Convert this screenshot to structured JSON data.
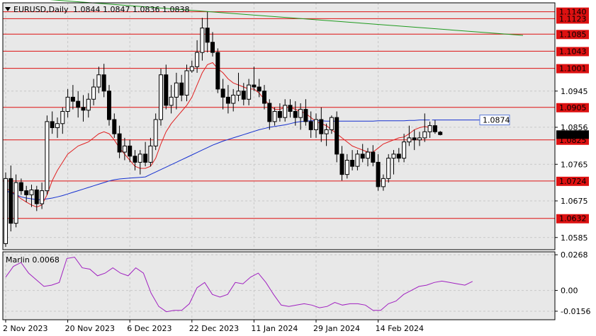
{
  "header": {
    "symbol_label": "EURUSD,Daily",
    "ohlc_label": "1.0844 1.0847 1.0836 1.0838"
  },
  "chart_data": [
    {
      "type": "candlestick",
      "symbol": "EURUSD",
      "timeframe": "Daily",
      "ylim": [
        1.0555,
        1.1162
      ],
      "y_tick_labels": [
        "1.0585",
        "1.0675",
        "1.0765",
        "1.0856",
        "1.0945"
      ],
      "x_tick_labels": [
        "2 Nov 2023",
        "20 Nov 2023",
        "6 Dec 2023",
        "22 Dec 2023",
        "11 Jan 2024",
        "29 Jan 2024",
        "14 Feb 2024"
      ],
      "x_tick_index": [
        0,
        12,
        24,
        36,
        48,
        60,
        72
      ],
      "level_lines": [
        {
          "value": 1.114,
          "label": "1.1140"
        },
        {
          "value": 1.1123,
          "label": "1.1123"
        },
        {
          "value": 1.1085,
          "label": "1.1085"
        },
        {
          "value": 1.1043,
          "label": "1.1043"
        },
        {
          "value": 1.1001,
          "label": "1.1001"
        },
        {
          "value": 1.0905,
          "label": "1.0905"
        },
        {
          "value": 1.0825,
          "label": "1.0825"
        },
        {
          "value": 1.0724,
          "label": "1.0724"
        },
        {
          "value": 1.0632,
          "label": "1.0632"
        }
      ],
      "level_color": "#dd1111",
      "blue_ma_label": "1.0874",
      "current_price_label": "1.0838",
      "trendline": {
        "from": [
          0,
          1.1178
        ],
        "to": [
          100,
          1.1082
        ],
        "color": "#1e9a1e"
      },
      "ohlc": [
        [
          1.057,
          1.0745,
          1.0562,
          1.073
        ],
        [
          1.073,
          1.0762,
          1.06,
          1.062
        ],
        [
          1.062,
          1.074,
          1.061,
          1.072
        ],
        [
          1.072,
          1.073,
          1.069,
          1.07
        ],
        [
          1.07,
          1.0712,
          1.0672,
          1.069
        ],
        [
          1.069,
          1.0715,
          1.066,
          1.0702
        ],
        [
          1.0702,
          1.0712,
          1.065,
          1.0668
        ],
        [
          1.0668,
          1.072,
          1.0655,
          1.07
        ],
        [
          1.07,
          1.0885,
          1.069,
          1.087
        ],
        [
          1.087,
          1.0895,
          1.084,
          1.0855
        ],
        [
          1.0855,
          1.088,
          1.083,
          1.0865
        ],
        [
          1.0865,
          1.0905,
          1.084,
          1.0895
        ],
        [
          1.0895,
          1.095,
          1.088,
          1.093
        ],
        [
          1.093,
          1.096,
          1.09,
          1.092
        ],
        [
          1.092,
          1.0945,
          1.088,
          1.0905
        ],
        [
          1.0905,
          1.0935,
          1.087,
          1.0898
        ],
        [
          1.0898,
          1.094,
          1.088,
          1.0925
        ],
        [
          1.0925,
          1.0975,
          1.091,
          1.0955
        ],
        [
          1.0955,
          1.1005,
          1.094,
          1.0985
        ],
        [
          1.0985,
          1.1012,
          1.093,
          1.0945
        ],
        [
          1.0945,
          1.096,
          1.086,
          1.0875
        ],
        [
          1.0875,
          1.089,
          1.083,
          1.084
        ],
        [
          1.084,
          1.086,
          1.078,
          1.0795
        ],
        [
          1.0795,
          1.083,
          1.0775,
          1.081
        ],
        [
          1.081,
          1.0825,
          1.077,
          1.0785
        ],
        [
          1.0785,
          1.08,
          1.075,
          1.077
        ],
        [
          1.077,
          1.08,
          1.074,
          1.079
        ],
        [
          1.079,
          1.082,
          1.076,
          1.077
        ],
        [
          1.077,
          1.083,
          1.076,
          1.081
        ],
        [
          1.081,
          1.089,
          1.08,
          1.0875
        ],
        [
          1.0875,
          1.1,
          1.086,
          1.0985
        ],
        [
          1.0985,
          1.101,
          1.09,
          1.091
        ],
        [
          1.091,
          1.096,
          1.089,
          1.093
        ],
        [
          1.093,
          1.099,
          1.09,
          1.0965
        ],
        [
          1.0965,
          1.0985,
          1.092,
          1.0935
        ],
        [
          1.0935,
          1.101,
          1.092,
          1.0995
        ],
        [
          1.0995,
          1.102,
          1.099,
          1.1005
        ],
        [
          1.1005,
          1.107,
          1.099,
          1.104
        ],
        [
          1.104,
          1.1125,
          1.102,
          1.11
        ],
        [
          1.11,
          1.114,
          1.104,
          1.1065
        ],
        [
          1.1065,
          1.109,
          1.103,
          1.104
        ],
        [
          1.104,
          1.105,
          1.094,
          1.095
        ],
        [
          1.095,
          1.0975,
          1.09,
          1.093
        ],
        [
          1.093,
          1.096,
          1.089,
          1.0915
        ],
        [
          1.0915,
          1.095,
          1.0895,
          1.0935
        ],
        [
          1.0935,
          1.099,
          1.092,
          1.0945
        ],
        [
          1.0945,
          1.0965,
          1.091,
          1.0925
        ],
        [
          1.0925,
          1.0975,
          1.091,
          1.096
        ],
        [
          1.096,
          1.1005,
          1.0945,
          1.0955
        ],
        [
          1.0955,
          1.0975,
          1.093,
          1.0945
        ],
        [
          1.0945,
          1.096,
          1.09,
          1.0915
        ],
        [
          1.0915,
          1.0925,
          1.085,
          1.087
        ],
        [
          1.087,
          1.0905,
          1.086,
          1.0895
        ],
        [
          1.0895,
          1.0915,
          1.087,
          1.088
        ],
        [
          1.088,
          1.0925,
          1.087,
          1.091
        ],
        [
          1.091,
          1.0925,
          1.088,
          1.0895
        ],
        [
          1.0895,
          1.092,
          1.086,
          1.088
        ],
        [
          1.088,
          1.0915,
          1.085,
          1.09
        ],
        [
          1.09,
          1.0925,
          1.086,
          1.087
        ],
        [
          1.087,
          1.0895,
          1.083,
          1.085
        ],
        [
          1.085,
          1.089,
          1.083,
          1.0875
        ],
        [
          1.0875,
          1.0905,
          1.082,
          1.084
        ],
        [
          1.084,
          1.0865,
          1.081,
          1.085
        ],
        [
          1.085,
          1.0885,
          1.084,
          1.088
        ],
        [
          1.088,
          1.0895,
          1.077,
          1.079
        ],
        [
          1.079,
          1.081,
          1.0725,
          1.074
        ],
        [
          1.074,
          1.079,
          1.073,
          1.0775
        ],
        [
          1.0775,
          1.08,
          1.075,
          1.076
        ],
        [
          1.076,
          1.08,
          1.075,
          1.079
        ],
        [
          1.079,
          1.0815,
          1.077,
          1.078
        ],
        [
          1.078,
          1.0805,
          1.076,
          1.0795
        ],
        [
          1.0795,
          1.0812,
          1.076,
          1.077
        ],
        [
          1.077,
          1.079,
          1.07,
          1.071
        ],
        [
          1.071,
          1.074,
          1.07,
          1.073
        ],
        [
          1.073,
          1.079,
          1.072,
          1.078
        ],
        [
          1.078,
          1.08,
          1.074,
          1.079
        ],
        [
          1.079,
          1.0805,
          1.077,
          1.078
        ],
        [
          1.078,
          1.084,
          1.077,
          1.082
        ],
        [
          1.082,
          1.086,
          1.081,
          1.083
        ],
        [
          1.083,
          1.085,
          1.08,
          1.0825
        ],
        [
          1.0825,
          1.0845,
          1.081,
          1.083
        ],
        [
          1.083,
          1.089,
          1.082,
          1.0845
        ],
        [
          1.0845,
          1.087,
          1.083,
          1.086
        ],
        [
          1.086,
          1.0875,
          1.084,
          1.0845
        ],
        [
          1.0844,
          1.0847,
          1.0836,
          1.0838
        ]
      ],
      "red_ma": [
        1.0705,
        1.07,
        1.069,
        1.068,
        1.0672,
        1.0665,
        1.066,
        1.0665,
        1.069,
        1.0725,
        1.075,
        1.077,
        1.079,
        1.08,
        1.081,
        1.0815,
        1.082,
        1.083,
        1.084,
        1.0845,
        1.084,
        1.0825,
        1.0805,
        1.079,
        1.0775,
        1.076,
        1.0755,
        1.0755,
        1.076,
        1.078,
        1.0815,
        1.0845,
        1.0865,
        1.088,
        1.0895,
        1.091,
        1.093,
        1.096,
        1.099,
        1.101,
        1.1015,
        1.1,
        1.099,
        1.0975,
        1.0965,
        1.096,
        1.0955,
        1.095,
        1.095,
        1.094,
        1.0925,
        1.091,
        1.09,
        1.09,
        1.0905,
        1.0905,
        1.09,
        1.0895,
        1.089,
        1.088,
        1.087,
        1.0865,
        1.086,
        1.085,
        1.084,
        1.083,
        1.082,
        1.081,
        1.0805,
        1.08,
        1.0795,
        1.0795,
        1.0805,
        1.0815,
        1.082,
        1.0825,
        1.083,
        1.0832,
        1.084,
        1.085,
        1.0855,
        1.0858,
        1.0855
      ],
      "blue_ma": [
        1.07,
        1.0695,
        1.069,
        1.0685,
        1.0682,
        1.068,
        1.0678,
        1.0678,
        1.068,
        1.0682,
        1.0685,
        1.0688,
        1.0692,
        1.0696,
        1.07,
        1.0704,
        1.0708,
        1.0712,
        1.0716,
        1.072,
        1.0724,
        1.0727,
        1.0729,
        1.073,
        1.0731,
        1.0732,
        1.0733,
        1.0734,
        1.074,
        1.0746,
        1.0752,
        1.0758,
        1.0764,
        1.077,
        1.0776,
        1.0782,
        1.0788,
        1.0794,
        1.08,
        1.0806,
        1.0812,
        1.0817,
        1.0822,
        1.0826,
        1.083,
        1.0834,
        1.0838,
        1.0842,
        1.0846,
        1.085,
        1.0853,
        1.0856,
        1.0858,
        1.086,
        1.0862,
        1.0865,
        1.0868,
        1.087,
        1.0871,
        1.0872,
        1.0872,
        1.0872,
        1.0871,
        1.0871,
        1.0871,
        1.0871,
        1.0871,
        1.0871,
        1.0871,
        1.0871,
        1.0871,
        1.0871,
        1.0872,
        1.0872,
        1.0872,
        1.0872,
        1.0872,
        1.0872,
        1.0873,
        1.0873,
        1.0874,
        1.0874,
        1.0874
      ]
    },
    {
      "type": "line",
      "name": "Marlin",
      "label": "Marlin 0.0068",
      "ylim": [
        -0.022,
        0.029
      ],
      "y_tick_labels": [
        "0.0268",
        "0.00",
        "-0.0156"
      ],
      "y_tick_values": [
        0.0268,
        0.0,
        -0.0156
      ],
      "color": "#a020c0",
      "values": [
        0.01,
        0.018,
        0.021,
        0.013,
        0.008,
        0.003,
        0.004,
        0.006,
        0.024,
        0.025,
        0.017,
        0.016,
        0.011,
        0.013,
        0.017,
        0.013,
        0.011,
        0.017,
        0.013,
        -0.002,
        -0.012,
        -0.016,
        -0.015,
        -0.015,
        -0.01,
        0.002,
        0.006,
        -0.003,
        -0.005,
        -0.003,
        0.006,
        0.005,
        0.01,
        0.013,
        0.006,
        -0.003,
        -0.011,
        -0.012,
        -0.011,
        -0.01,
        -0.011,
        -0.013,
        -0.012,
        -0.009,
        -0.011,
        -0.01,
        -0.01,
        -0.011,
        -0.015,
        -0.015,
        -0.01,
        -0.008,
        -0.003,
        0.0,
        0.003,
        0.004,
        0.006,
        0.007,
        0.006,
        0.005,
        0.004,
        0.0068
      ]
    }
  ]
}
